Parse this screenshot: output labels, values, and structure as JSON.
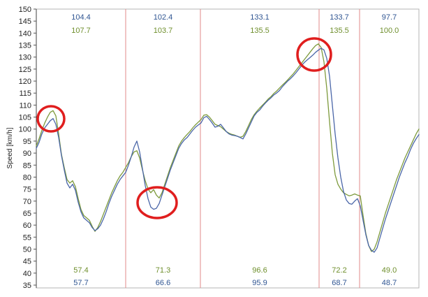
{
  "chart_data": {
    "type": "line",
    "title": "",
    "xlabel": "",
    "ylabel": "Speed [km/h]",
    "ylim": [
      35,
      150
    ],
    "yticks": [
      150,
      145,
      140,
      135,
      130,
      125,
      120,
      115,
      110,
      105,
      100,
      95,
      90,
      85,
      80,
      75,
      70,
      65,
      60,
      55,
      50,
      45,
      40,
      35
    ],
    "grid": false,
    "series": [
      {
        "color": "#7d9a3c",
        "values": [
          93.0,
          96.0,
          99.5,
          102.5,
          105.0,
          107.0,
          107.7,
          105.5,
          98.0,
          89.5,
          84.0,
          79.0,
          77.5,
          78.5,
          76.0,
          71.0,
          66.5,
          64.0,
          63.0,
          62.0,
          59.5,
          57.4,
          59.0,
          61.5,
          64.5,
          67.5,
          70.5,
          73.5,
          76.0,
          78.5,
          80.5,
          82.0,
          84.0,
          86.0,
          88.5,
          90.5,
          91.0,
          88.0,
          83.0,
          78.5,
          75.0,
          73.5,
          74.8,
          72.5,
          71.3,
          73.5,
          77.0,
          80.5,
          84.0,
          87.0,
          90.0,
          93.0,
          95.0,
          96.5,
          97.8,
          99.0,
          100.5,
          101.8,
          102.9,
          104.0,
          105.8,
          106.0,
          105.0,
          103.5,
          102.0,
          101.5,
          101.0,
          100.0,
          99.0,
          98.3,
          97.8,
          97.5,
          97.0,
          96.6,
          97.0,
          99.0,
          101.5,
          104.0,
          106.0,
          107.5,
          108.8,
          110.0,
          111.2,
          112.5,
          113.5,
          114.8,
          115.8,
          117.0,
          118.2,
          119.3,
          120.5,
          121.8,
          123.0,
          124.5,
          126.0,
          127.5,
          129.0,
          130.5,
          132.0,
          133.5,
          134.8,
          135.5,
          134.0,
          128.0,
          117.0,
          103.0,
          90.0,
          81.0,
          77.0,
          75.0,
          73.5,
          72.8,
          72.2,
          72.5,
          73.0,
          72.5,
          72.2,
          64.0,
          56.5,
          51.5,
          49.0,
          50.0,
          53.0,
          57.0,
          61.0,
          65.0,
          68.5,
          72.0,
          75.5,
          79.0,
          82.0,
          85.0,
          88.0,
          90.5,
          93.0,
          95.5,
          98.0,
          100.0
        ]
      },
      {
        "color": "#4a66a8",
        "values": [
          92.0,
          94.5,
          98.0,
          100.5,
          102.0,
          103.5,
          104.4,
          102.0,
          96.5,
          89.0,
          83.0,
          77.5,
          75.5,
          77.0,
          74.5,
          69.5,
          65.5,
          63.0,
          62.0,
          61.0,
          59.0,
          57.7,
          58.5,
          60.0,
          62.5,
          65.5,
          69.0,
          72.0,
          74.5,
          77.0,
          79.0,
          80.5,
          82.0,
          85.0,
          88.5,
          92.5,
          95.0,
          90.5,
          83.5,
          76.5,
          71.0,
          67.5,
          66.6,
          67.0,
          69.0,
          72.5,
          76.0,
          79.5,
          83.0,
          86.0,
          89.0,
          92.0,
          94.0,
          95.5,
          96.5,
          98.0,
          99.5,
          100.8,
          101.7,
          102.6,
          104.8,
          105.3,
          104.0,
          102.5,
          100.8,
          101.2,
          102.0,
          100.5,
          99.0,
          98.0,
          97.5,
          97.3,
          97.0,
          96.5,
          95.9,
          98.0,
          100.5,
          103.0,
          105.5,
          107.0,
          108.0,
          109.5,
          110.8,
          112.0,
          113.0,
          114.2,
          115.0,
          116.0,
          117.5,
          118.8,
          120.0,
          121.0,
          122.2,
          123.5,
          125.0,
          126.5,
          127.8,
          128.8,
          129.8,
          130.8,
          132.0,
          132.9,
          133.7,
          133.0,
          129.5,
          122.0,
          110.0,
          98.0,
          88.0,
          80.0,
          74.0,
          70.5,
          69.0,
          68.7,
          70.0,
          71.0,
          68.0,
          62.0,
          56.0,
          51.5,
          49.5,
          48.7,
          50.5,
          54.5,
          58.5,
          62.5,
          66.0,
          69.5,
          73.0,
          76.5,
          80.0,
          83.0,
          86.0,
          88.5,
          91.5,
          94.0,
          96.0,
          97.7
        ]
      }
    ],
    "sector_breaks": [
      32,
      58.75,
      101.25,
      115.75
    ],
    "sectors": [
      {
        "top": [
          "104.4",
          "107.7"
        ],
        "bottom": [
          "57.4",
          "57.7"
        ]
      },
      {
        "top": [
          "102.4",
          "103.7"
        ],
        "bottom": [
          "71.3",
          "66.6"
        ]
      },
      {
        "top": [
          "133.1",
          "135.5"
        ],
        "bottom": [
          "96.6",
          "95.9"
        ]
      },
      {
        "top": [
          "133.7",
          "135.5"
        ],
        "bottom": [
          "72.2",
          "68.7"
        ]
      },
      {
        "top": [
          "97.7",
          "100.0"
        ],
        "bottom": [
          "49.0",
          "48.7"
        ]
      }
    ],
    "label_colors": {
      "top": [
        "#2f5592",
        "#6f8f2d"
      ],
      "bottom": [
        "#6f8f2d",
        "#2f5592"
      ]
    },
    "divider_color": "#e28a8a",
    "highlight_color": "#e01e1e"
  }
}
